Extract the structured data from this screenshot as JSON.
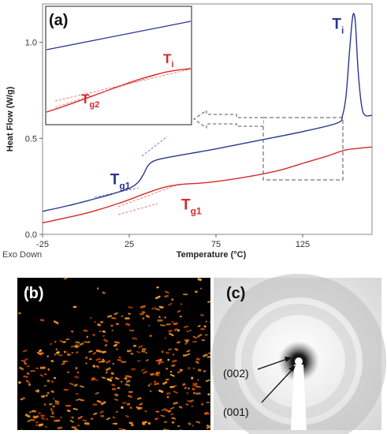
{
  "chart_data": {
    "type": "line",
    "panel_label": "(a)",
    "xlabel": "Temperature (°C)",
    "ylabel": "Heat Flow (W/g)",
    "exo_label": "Exo Down",
    "xlim": [
      -25,
      165
    ],
    "ylim": [
      0.0,
      1.2
    ],
    "x_ticks": [
      -25,
      25,
      75,
      125
    ],
    "y_ticks": [
      0.0,
      0.5,
      1.0
    ],
    "grid": false,
    "series": [
      {
        "color": "#2a3591",
        "points": [
          [
            -25,
            0.12
          ],
          [
            -10,
            0.15
          ],
          [
            5,
            0.185
          ],
          [
            15,
            0.21
          ],
          [
            25,
            0.24
          ],
          [
            30,
            0.27
          ],
          [
            33,
            0.31
          ],
          [
            36,
            0.36
          ],
          [
            40,
            0.385
          ],
          [
            50,
            0.405
          ],
          [
            75,
            0.445
          ],
          [
            100,
            0.49
          ],
          [
            125,
            0.535
          ],
          [
            145,
            0.58
          ],
          [
            148,
            0.62
          ],
          [
            150,
            0.72
          ],
          [
            152,
            0.95
          ],
          [
            153.5,
            1.11
          ],
          [
            154.5,
            1.15
          ],
          [
            155.5,
            1.09
          ],
          [
            157,
            0.85
          ],
          [
            159,
            0.67
          ],
          [
            161,
            0.62
          ],
          [
            165,
            0.62
          ]
        ]
      },
      {
        "color": "#d42a2a",
        "points": [
          [
            -25,
            0.06
          ],
          [
            0,
            0.11
          ],
          [
            20,
            0.165
          ],
          [
            35,
            0.215
          ],
          [
            45,
            0.245
          ],
          [
            55,
            0.26
          ],
          [
            70,
            0.27
          ],
          [
            90,
            0.295
          ],
          [
            110,
            0.33
          ],
          [
            125,
            0.37
          ],
          [
            140,
            0.41
          ],
          [
            150,
            0.44
          ],
          [
            165,
            0.455
          ]
        ]
      }
    ],
    "annotations": [
      {
        "base": "T",
        "sub": "i",
        "color": "#2a3591",
        "x": 142,
        "y": 1.07
      },
      {
        "base": "T",
        "sub": "g1",
        "color": "#2a3591",
        "x": 14,
        "y": 0.26
      },
      {
        "base": "T",
        "sub": "g1",
        "color": "#d42a2a",
        "x": 55,
        "y": 0.13
      }
    ],
    "inset": {
      "annotations": [
        {
          "base": "T",
          "sub": "i",
          "color": "#d42a2a"
        },
        {
          "base": "T",
          "sub": "g2",
          "color": "#d42a2a"
        }
      ]
    }
  },
  "panels": {
    "b": {
      "label": "(b)"
    },
    "c": {
      "label": "(c)",
      "reflections": [
        "(002)",
        "(001)"
      ]
    }
  }
}
